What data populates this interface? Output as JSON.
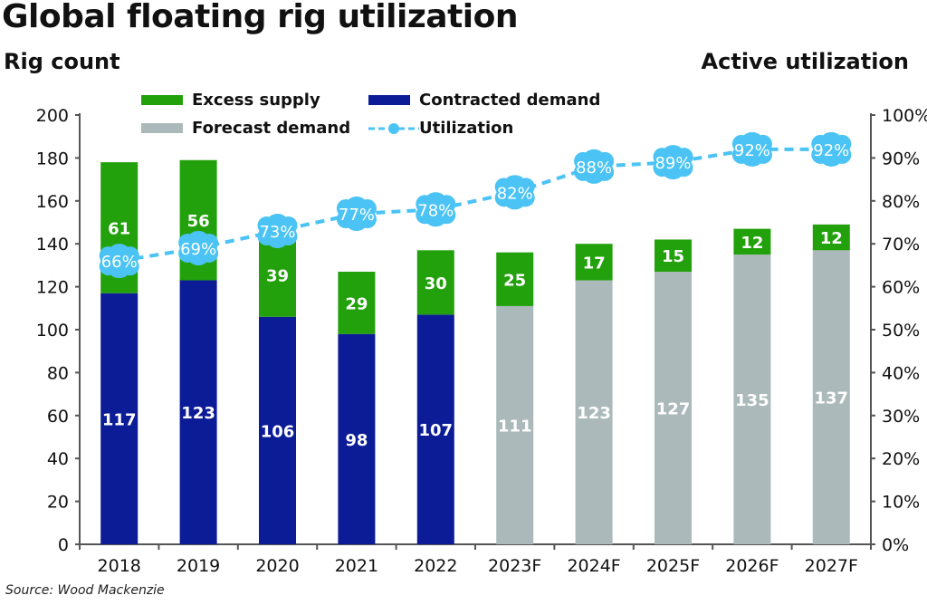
{
  "chart_data": {
    "type": "bar",
    "stacked": true,
    "title": "Global floating rig utilization",
    "ylabel": "Rig count",
    "y2label": "Active utilization",
    "source": "Source: Wood Mackenzie",
    "categories": [
      "2018",
      "2019",
      "2020",
      "2021",
      "2022",
      "2023F",
      "2024F",
      "2025F",
      "2026F",
      "2027F"
    ],
    "ylim": [
      0,
      200
    ],
    "yticks": [
      0,
      20,
      40,
      60,
      80,
      100,
      120,
      140,
      160,
      180,
      200
    ],
    "y2lim": [
      0,
      100
    ],
    "y2ticks": [
      "0%",
      "10%",
      "20%",
      "30%",
      "40%",
      "50%",
      "60%",
      "70%",
      "80%",
      "90%",
      "100%"
    ],
    "grid": false,
    "legend_placement": "top",
    "series": [
      {
        "name": "Contracted demand",
        "type": "bar",
        "color": "#0c1c97",
        "values": [
          117,
          123,
          106,
          98,
          107,
          null,
          null,
          null,
          null,
          null
        ]
      },
      {
        "name": "Forecast demand",
        "type": "bar",
        "color": "#abb9ba",
        "values": [
          null,
          null,
          null,
          null,
          null,
          111,
          123,
          127,
          135,
          137
        ]
      },
      {
        "name": "Excess supply",
        "type": "bar",
        "color": "#22a10c",
        "values": [
          61,
          56,
          39,
          29,
          30,
          25,
          17,
          15,
          12,
          12
        ]
      },
      {
        "name": "Utilization",
        "type": "line",
        "axis": "right",
        "style": "dashed",
        "color": "#4bc3f4",
        "values": [
          66,
          69,
          73,
          77,
          78,
          82,
          88,
          89,
          92,
          92
        ],
        "labels": [
          "66%",
          "69%",
          "73%",
          "77%",
          "78%",
          "82%",
          "88%",
          "89%",
          "92%",
          "92%"
        ]
      }
    ],
    "legend": [
      "Excess supply",
      "Contracted demand",
      "Forecast demand",
      "Utilization"
    ]
  }
}
